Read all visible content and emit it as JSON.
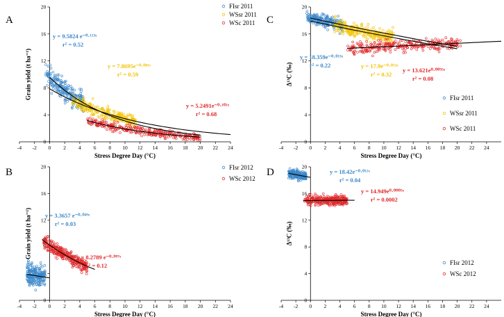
{
  "colors": {
    "FIsr": "#3b87c9",
    "WSsr": "#f2c300",
    "WSc": "#e0282a",
    "fit": "#000000"
  },
  "chart_data": [
    {
      "panel": "A",
      "type": "scatter",
      "xlabel": "Stress Degree Day (°C)",
      "ylabel": "Grain yield (t ha⁻¹)",
      "xlim": [
        -4,
        24
      ],
      "ylim": [
        0,
        20
      ],
      "xticks": [
        "-4",
        "-2",
        "0",
        "2",
        "4",
        "6",
        "8",
        "10",
        "12",
        "14",
        "16",
        "18",
        "20",
        "22",
        "24"
      ],
      "yticks": [
        "0",
        "4",
        "8",
        "12",
        "16",
        "20"
      ],
      "legend_position": "top-right",
      "series": [
        {
          "name": "FIsr 2011",
          "color_key": "FIsr",
          "x_range": [
            -0.5,
            4.5
          ],
          "fit": {
            "a": 9.5824,
            "b": -0.113
          },
          "fit_range": [
            0,
            20
          ],
          "equation": "y = 9.5824 e⁻⁰·¹¹³ˣ",
          "r2": "r² = 0.52",
          "n": 230,
          "spread": 1.3,
          "seed": 11
        },
        {
          "name": "WSsr 2011",
          "color_key": "WSsr",
          "x_range": [
            3.0,
            11.5
          ],
          "fit": {
            "a": 7.8695,
            "b": -0.083
          },
          "fit_range": [
            0,
            24
          ],
          "equation": "y = 7.8695e⁻⁰·⁰⁸³ˣ",
          "r2": "r² = 0.59",
          "n": 260,
          "spread": 0.8,
          "seed": 12
        },
        {
          "name": "WSc 2011",
          "color_key": "WSc",
          "x_range": [
            5.0,
            20.0
          ],
          "fit": {
            "a": 5.2491,
            "b": -0.101
          },
          "fit_range": [
            5,
            20
          ],
          "equation": "y = 5.2491e⁻⁰·¹⁰¹ˣ",
          "r2": "r² = 0.68",
          "n": 300,
          "spread": 0.5,
          "seed": 13
        }
      ]
    },
    {
      "panel": "B",
      "type": "scatter",
      "xlabel": "Stress Degree Day (°C)",
      "ylabel": "Grain yield (t ha⁻¹)",
      "xlim": [
        -4,
        24
      ],
      "ylim": [
        0,
        20
      ],
      "xticks": [
        "-4",
        "-2",
        "0",
        "2",
        "4",
        "6",
        "8",
        "10",
        "12",
        "14",
        "16",
        "18",
        "20",
        "22",
        "24"
      ],
      "yticks": [
        "0",
        "4",
        "8",
        "12",
        "16",
        "20"
      ],
      "legend_position": "top-right",
      "series": [
        {
          "name": "FIsr 2012",
          "color_key": "FIsr",
          "x_range": [
            -3.0,
            -0.6
          ],
          "fit": {
            "a": 3.3657,
            "b": -0.049
          },
          "fit_range": [
            -3,
            0
          ],
          "equation": "y = 3.3657 e⁻⁰·⁰⁴⁹ˣ",
          "r2": "r² = 0.03",
          "n": 220,
          "spread": 1.3,
          "seed": 21
        },
        {
          "name": "WSc 2012",
          "color_key": "WSc",
          "x_range": [
            -0.8,
            5.0
          ],
          "fit": {
            "a": 8.2789,
            "b": -0.097
          },
          "fit_range": [
            -1,
            6
          ],
          "equation": "y = 8.2789 e⁻⁰·⁰⁹⁷ˣ",
          "r2": "r² = 0.12",
          "n": 320,
          "spread": 0.8,
          "seed": 22
        }
      ]
    },
    {
      "panel": "C",
      "type": "scatter",
      "xlabel": "Stress Degree Day (°C)",
      "ylabel": "Δ¹³C (‰)",
      "xlim": [
        -4,
        26
      ],
      "ylim": [
        0,
        20
      ],
      "xticks": [
        "-4",
        "-2",
        "0",
        "2",
        "4",
        "6",
        "8",
        "10",
        "12",
        "14",
        "16",
        "18",
        "20",
        "22",
        "24"
      ],
      "yticks": [
        "0",
        "4",
        "8",
        "12",
        "16",
        "20"
      ],
      "legend_position": "bottom-right",
      "series": [
        {
          "name": "FIsr 2011",
          "color_key": "FIsr",
          "x_range": [
            -0.5,
            4.5
          ],
          "fit": {
            "a": 18.359,
            "b": -0.013
          },
          "fit_range": [
            0,
            20
          ],
          "equation": "y = 18.359e⁻⁰·⁰¹³ˣ",
          "r2": "r² = 0.22",
          "n": 230,
          "spread": 0.7,
          "seed": 31
        },
        {
          "name": "WSsr 2011",
          "color_key": "WSsr",
          "x_range": [
            3.0,
            11.5
          ],
          "fit": {
            "a": 17.9,
            "b": -0.013
          },
          "fit_range": [
            0,
            20
          ],
          "equation": "y = 17.9e⁻⁰·⁰¹³ˣ",
          "r2": "r² = 0.32",
          "n": 260,
          "spread": 0.8,
          "seed": 32
        },
        {
          "name": "WSc 2011",
          "color_key": "WSc",
          "x_range": [
            5.0,
            20.5
          ],
          "fit": {
            "a": 13.621,
            "b": 0.0035
          },
          "fit_range": [
            5,
            26
          ],
          "equation": "y = 13.621e⁰·⁰⁰³⁵ˣ",
          "r2": "r² = 0.08",
          "n": 300,
          "spread": 0.7,
          "seed": 33
        }
      ]
    },
    {
      "panel": "D",
      "type": "scatter",
      "xlabel": "Stress Degree Day (°C)",
      "ylabel": "Δ¹³C (‰)",
      "xlim": [
        -4,
        26
      ],
      "ylim": [
        0,
        20
      ],
      "xticks": [
        "-4",
        "-2",
        "0",
        "2",
        "4",
        "6",
        "8",
        "10",
        "12",
        "14",
        "16",
        "18",
        "20",
        "22",
        "24"
      ],
      "yticks": [
        "0",
        "4",
        "8",
        "12",
        "16",
        "20"
      ],
      "legend_position": "bottom-right",
      "series": [
        {
          "name": "FIsr 2012",
          "color_key": "FIsr",
          "x_range": [
            -3.0,
            -0.6
          ],
          "fit": {
            "a": 18.42,
            "b": -0.011
          },
          "fit_range": [
            -3,
            0
          ],
          "equation": "y = 18.42e⁻⁰·⁰¹¹ˣ",
          "r2": "r² = 0.04",
          "n": 220,
          "spread": 0.5,
          "seed": 41
        },
        {
          "name": "WSc 2012",
          "color_key": "WSc",
          "x_range": [
            -0.8,
            5.0
          ],
          "fit": {
            "a": 14.949,
            "b": 0.0005
          },
          "fit_range": [
            -1,
            6
          ],
          "equation": "y = 14.949e⁰·⁰⁰⁰⁵ˣ",
          "r2": "r² = 0.0002",
          "n": 320,
          "spread": 0.6,
          "seed": 42
        }
      ]
    }
  ]
}
